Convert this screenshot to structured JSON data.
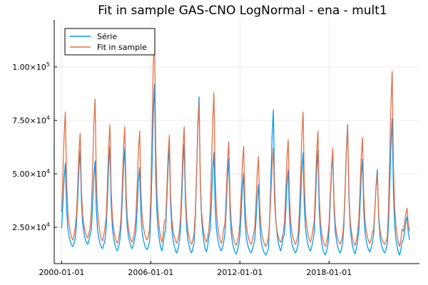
{
  "chart_data": {
    "type": "line",
    "title": "Fit in sample GAS-CNO LogNormal - ena - mult1",
    "xlabel": "",
    "ylabel": "",
    "x_start": "2000-01",
    "x_end": "2023-06",
    "xlim": [
      "1999-07",
      "2024-02"
    ],
    "ylim": [
      8000,
      122000
    ],
    "x_ticks": [
      "2000-01-01",
      "2006-01-01",
      "2012-01-01",
      "2018-01-01"
    ],
    "y_ticks": [
      {
        "value": 25000,
        "mantissa": "2.50",
        "exp": "4"
      },
      {
        "value": 50000,
        "mantissa": "5.00",
        "exp": "4"
      },
      {
        "value": 75000,
        "mantissa": "7.50",
        "exp": "4"
      },
      {
        "value": 100000,
        "mantissa": "1.00",
        "exp": "5"
      }
    ],
    "grid": true,
    "legend_position": "top-left",
    "series": [
      {
        "name": "Série",
        "color": "#009AFA",
        "annual_peaks": [
          55000,
          61000,
          56000,
          63000,
          62000,
          53000,
          92000,
          63000,
          64000,
          86000,
          60000,
          57000,
          50000,
          45000,
          80000,
          52000,
          60000,
          61000,
          60000,
          73000,
          57000,
          52000,
          76000,
          30000
        ],
        "trough_levels": [
          16000,
          17000,
          15000,
          14000,
          15000,
          14500,
          14000,
          13000,
          13000,
          13500,
          14000,
          12500,
          13000,
          12000,
          14000,
          13000,
          14000,
          12000,
          13000,
          12500,
          13500,
          13000,
          12000,
          16000
        ]
      },
      {
        "name": "Fit in sample",
        "color": "#E26F46",
        "annual_peaks": [
          79000,
          69000,
          85000,
          73000,
          72000,
          70000,
          118000,
          68000,
          72000,
          83000,
          88000,
          65000,
          63000,
          58000,
          62000,
          66000,
          79000,
          70000,
          62000,
          72000,
          67000,
          50000,
          98000,
          34000
        ],
        "trough_levels": [
          19000,
          20000,
          18500,
          17500,
          18000,
          19000,
          18000,
          17500,
          17000,
          18000,
          17500,
          16500,
          17000,
          16000,
          18000,
          17000,
          18000,
          16000,
          17000,
          16500,
          17500,
          17000,
          16000,
          20000
        ]
      }
    ]
  }
}
